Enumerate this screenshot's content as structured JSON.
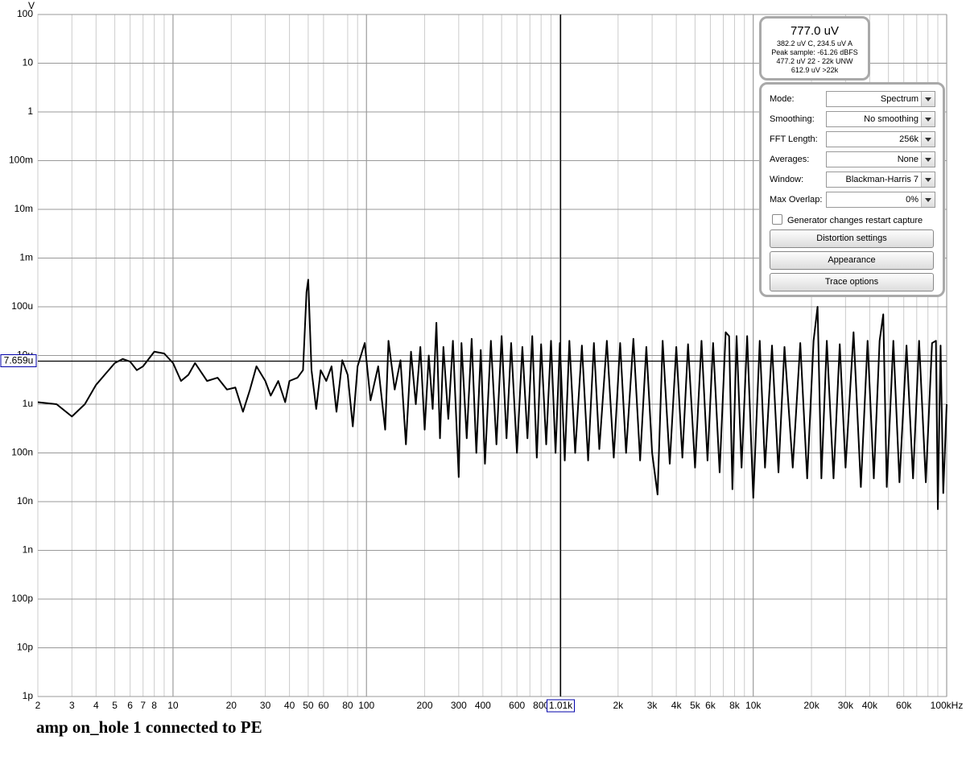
{
  "chart_data": {
    "type": "line",
    "title": "amp on_hole 1 connected to PE",
    "y_label": "V",
    "color": "#000000",
    "log_x": true,
    "log_y": true,
    "grid": true,
    "xlim": [
      2,
      100000
    ],
    "ylim": [
      1e-12,
      100
    ],
    "xticks": [
      2,
      3,
      4,
      5,
      6,
      7,
      8,
      10,
      20,
      30,
      40,
      50,
      60,
      80,
      100,
      200,
      300,
      400,
      600,
      800,
      {
        "value": 2000,
        "label": "2k"
      },
      {
        "value": 3000,
        "label": "3k"
      },
      {
        "value": 4000,
        "label": "4k"
      },
      {
        "value": 5000,
        "label": "5k"
      },
      {
        "value": 6000,
        "label": "6k"
      },
      {
        "value": 8000,
        "label": "8k"
      },
      {
        "value": 10000,
        "label": "10k"
      },
      {
        "value": 20000,
        "label": "20k"
      },
      {
        "value": 30000,
        "label": "30k"
      },
      {
        "value": 40000,
        "label": "40k"
      },
      {
        "value": 60000,
        "label": "60k"
      },
      {
        "value": 100000,
        "label": "100kHz"
      }
    ],
    "x_minor_ticks": [
      9,
      90,
      500,
      700,
      900,
      1000,
      7000,
      9000,
      50000,
      70000,
      80000,
      90000
    ],
    "yticks": [
      100,
      10,
      1,
      {
        "value": 0.1,
        "label": "100m"
      },
      {
        "value": 0.01,
        "label": "10m"
      },
      {
        "value": 0.001,
        "label": "1m"
      },
      {
        "value": 0.0001,
        "label": "100u"
      },
      {
        "value": 1e-05,
        "label": "10u"
      },
      {
        "value": 1e-06,
        "label": "1u"
      },
      {
        "value": 1e-07,
        "label": "100n"
      },
      {
        "value": 1e-08,
        "label": "10n"
      },
      {
        "value": 1e-09,
        "label": "1n"
      },
      {
        "value": 1e-10,
        "label": "100p"
      },
      {
        "value": 1e-11,
        "label": "10p"
      },
      {
        "value": 1e-12,
        "label": "1p"
      }
    ],
    "cursor": {
      "x": 1010,
      "x_label": "1.01k",
      "y": 7.659e-06,
      "y_label": "7.659u"
    },
    "x": [
      2,
      2.5,
      3,
      3.5,
      4,
      5,
      5.5,
      6,
      6.5,
      7,
      8,
      9,
      10,
      11,
      12,
      13,
      14,
      15,
      17,
      19,
      21,
      23,
      25,
      27,
      30,
      32,
      35,
      38,
      40,
      44,
      47,
      49,
      50,
      52,
      55,
      58,
      62,
      66,
      70,
      75,
      80,
      85,
      90,
      98,
      105,
      115,
      125,
      130,
      140,
      150,
      160,
      170,
      180,
      190,
      200,
      210,
      220,
      230,
      240,
      250,
      265,
      280,
      300,
      310,
      330,
      350,
      370,
      390,
      410,
      440,
      470,
      500,
      530,
      560,
      600,
      640,
      680,
      720,
      760,
      800,
      850,
      900,
      950,
      1000,
      1060,
      1120,
      1200,
      1300,
      1400,
      1500,
      1600,
      1750,
      1900,
      2050,
      2200,
      2400,
      2600,
      2800,
      3000,
      3200,
      3400,
      3700,
      4000,
      4300,
      4600,
      5000,
      5400,
      5800,
      6200,
      6700,
      7200,
      7500,
      7800,
      8200,
      8700,
      9300,
      10000,
      10800,
      11500,
      12500,
      13500,
      14500,
      16000,
      17500,
      19000,
      20500,
      21500,
      22500,
      24000,
      26000,
      28000,
      30000,
      33000,
      36000,
      39000,
      42000,
      45000,
      47000,
      49000,
      53000,
      57000,
      62000,
      67000,
      72000,
      78000,
      84000,
      88000,
      90000,
      93000,
      96000,
      100000
    ],
    "values": [
      1.1e-06,
      1e-06,
      5.6e-07,
      1e-06,
      2.5e-06,
      7e-06,
      8.5e-06,
      7.5e-06,
      5e-06,
      6e-06,
      1.2e-05,
      1.1e-05,
      7e-06,
      3e-06,
      4e-06,
      7e-06,
      4.5e-06,
      3e-06,
      3.5e-06,
      2e-06,
      2.2e-06,
      7e-07,
      2e-06,
      6e-06,
      3e-06,
      1.5e-06,
      3e-06,
      1.1e-06,
      3e-06,
      3.5e-06,
      5e-06,
      0.0002,
      0.00036,
      5e-06,
      8e-07,
      5e-06,
      3e-06,
      6e-06,
      7e-07,
      8e-06,
      4e-06,
      3.5e-07,
      6e-06,
      1.8e-05,
      1.2e-06,
      6e-06,
      3e-07,
      2e-05,
      2e-06,
      8e-06,
      1.5e-07,
      1.2e-05,
      1e-06,
      1.5e-05,
      3e-07,
      1e-05,
      8e-07,
      4.7e-05,
      2e-07,
      1.5e-05,
      5e-07,
      2e-05,
      3.2e-08,
      1.8e-05,
      2e-07,
      2.2e-05,
      1e-07,
      1.3e-05,
      6e-08,
      2e-05,
      1.5e-07,
      2.5e-05,
      2e-07,
      1.8e-05,
      1e-07,
      1.5e-05,
      2e-07,
      2.5e-05,
      8e-08,
      1.7e-05,
      1.5e-07,
      2e-05,
      1e-07,
      1.8e-05,
      7e-08,
      2e-05,
      1e-07,
      1.6e-05,
      7e-08,
      1.8e-05,
      1.2e-07,
      2e-05,
      8e-08,
      1.8e-05,
      1e-07,
      2.2e-05,
      7e-08,
      1.5e-05,
      1e-07,
      1.4e-08,
      2e-05,
      6e-08,
      1.5e-05,
      8e-08,
      1.7e-05,
      5e-08,
      2e-05,
      7e-08,
      1.8e-05,
      4e-08,
      3e-05,
      2.5e-05,
      1.8e-08,
      2.5e-05,
      5e-08,
      2.5e-05,
      1.2e-08,
      2e-05,
      5e-08,
      1.6e-05,
      4e-08,
      1.5e-05,
      5e-08,
      1.8e-05,
      3e-08,
      2e-05,
      0.0001,
      3e-08,
      2e-05,
      3e-08,
      1.7e-05,
      5e-08,
      3e-05,
      2e-08,
      2e-05,
      3e-08,
      2e-05,
      7e-05,
      2e-08,
      2e-05,
      2.5e-08,
      1.6e-05,
      3e-08,
      2e-05,
      2.5e-08,
      1.8e-05,
      2e-05,
      7e-09,
      1.6e-05,
      1.5e-08,
      1e-06
    ]
  },
  "readout": {
    "main": "777.0 uV",
    "lines": [
      "382.2 uV C, 234.5 uV A",
      "Peak sample: -61.26 dBFS",
      "477.2 uV 22 - 22k UNW",
      "612.9 uV >22k"
    ]
  },
  "controls": [
    {
      "label": "Mode:",
      "value": "Spectrum"
    },
    {
      "label": "Smoothing:",
      "value": "No  smoothing"
    },
    {
      "label": "FFT Length:",
      "value": "256k"
    },
    {
      "label": "Averages:",
      "value": "None"
    },
    {
      "label": "Window:",
      "value": "Blackman-Harris 7"
    },
    {
      "label": "Max Overlap:",
      "value": "0%"
    }
  ],
  "checkbox": "Generator changes restart capture",
  "buttons": [
    "Distortion settings",
    "Appearance",
    "Trace options"
  ]
}
